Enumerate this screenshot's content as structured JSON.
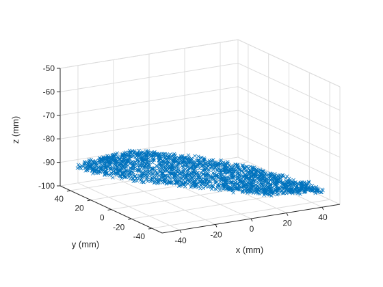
{
  "chart_data": {
    "type": "scatter3d",
    "marker": "x",
    "color": "#0072BD",
    "grid": true,
    "box": false,
    "xlabel": "x (mm)",
    "ylabel": "y (mm)",
    "zlabel": "z (mm)",
    "xlim": [
      -50,
      50
    ],
    "ylim": [
      -50,
      50
    ],
    "zlim": [
      -100,
      -50
    ],
    "xticks": [
      -40,
      -20,
      0,
      20,
      40
    ],
    "yticks": [
      -40,
      -20,
      0,
      20,
      40
    ],
    "zticks": [
      -100,
      -90,
      -80,
      -70,
      -60,
      -50
    ],
    "cloud": {
      "shape": "curved saddle-like surface",
      "x_range": [
        -45,
        45
      ],
      "y_range": [
        -45,
        45
      ],
      "z_range": [
        -98,
        -85
      ],
      "approx_points": 2000
    }
  }
}
